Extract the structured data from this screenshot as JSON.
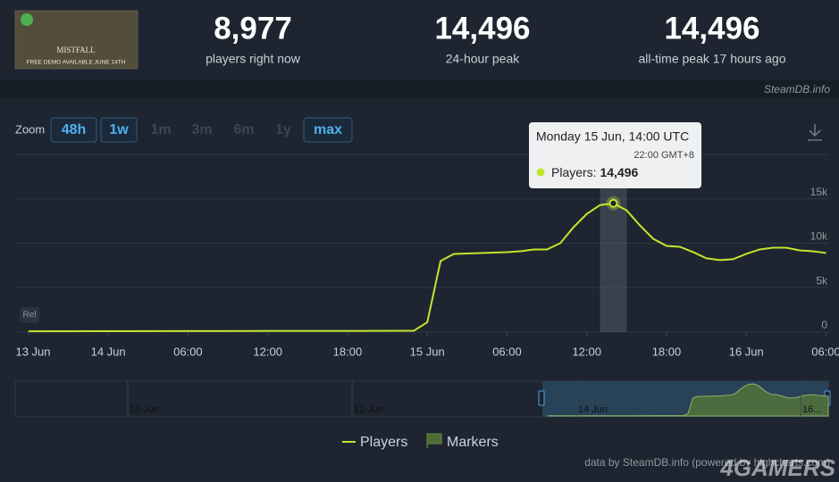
{
  "header": {
    "game_image_text": [
      "MISTFALL",
      "FREE DEMO AVAILABLE JUNE 14TH"
    ],
    "stats": [
      {
        "value": "8,977",
        "label": "players right now"
      },
      {
        "value": "14,496",
        "label": "24-hour peak"
      },
      {
        "value": "14,496",
        "label": "all-time peak 17 hours ago"
      }
    ],
    "source": "SteamDB.info"
  },
  "zoom": {
    "label": "Zoom",
    "buttons": [
      {
        "text": "48h",
        "enabled": true
      },
      {
        "text": "1w",
        "enabled": true
      },
      {
        "text": "1m",
        "enabled": false
      },
      {
        "text": "3m",
        "enabled": false
      },
      {
        "text": "6m",
        "enabled": false
      },
      {
        "text": "1y",
        "enabled": false
      },
      {
        "text": "max",
        "enabled": true
      }
    ]
  },
  "chart_data": {
    "type": "line",
    "x": [
      "13 Jun 18:00",
      "14 Jun 00:00",
      "14 Jun 06:00",
      "14 Jun 12:00",
      "14 Jun 18:00",
      "14 Jun 23:00",
      "15 Jun 00:00",
      "15 Jun 01:00",
      "15 Jun 02:00",
      "15 Jun 03:00",
      "15 Jun 04:00",
      "15 Jun 05:00",
      "15 Jun 06:00",
      "15 Jun 07:00",
      "15 Jun 08:00",
      "15 Jun 09:00",
      "15 Jun 10:00",
      "15 Jun 11:00",
      "15 Jun 12:00",
      "15 Jun 13:00",
      "15 Jun 14:00",
      "15 Jun 15:00",
      "15 Jun 16:00",
      "15 Jun 17:00",
      "15 Jun 18:00",
      "15 Jun 19:00",
      "15 Jun 20:00",
      "15 Jun 21:00",
      "15 Jun 22:00",
      "15 Jun 23:00",
      "16 Jun 00:00",
      "16 Jun 01:00",
      "16 Jun 02:00",
      "16 Jun 03:00",
      "16 Jun 04:00",
      "16 Jun 05:00",
      "16 Jun 06:00"
    ],
    "series": [
      {
        "name": "Players",
        "color": "#c3e62c",
        "values": [
          90,
          100,
          110,
          120,
          130,
          150,
          1100,
          8000,
          8800,
          8850,
          8900,
          8950,
          9000,
          9100,
          9300,
          9300,
          10000,
          11800,
          13300,
          14300,
          14496,
          13700,
          12000,
          10500,
          9700,
          9600,
          9000,
          8300,
          8100,
          8200,
          8800,
          9300,
          9500,
          9500,
          9200,
          9100,
          8900
        ]
      }
    ],
    "xlim": [
      "13 Jun 17:00",
      "16 Jun 06:10"
    ],
    "xticks": [
      {
        "value": "13 Jun 18:00",
        "label": "13 Jun"
      },
      {
        "value": "14 Jun 00:00",
        "label": "14 Jun"
      },
      {
        "value": "14 Jun 06:00",
        "label": "06:00"
      },
      {
        "value": "14 Jun 12:00",
        "label": "12:00"
      },
      {
        "value": "14 Jun 18:00",
        "label": "18:00"
      },
      {
        "value": "15 Jun 00:00",
        "label": "15 Jun"
      },
      {
        "value": "15 Jun 06:00",
        "label": "06:00"
      },
      {
        "value": "15 Jun 12:00",
        "label": "12:00"
      },
      {
        "value": "15 Jun 18:00",
        "label": "18:00"
      },
      {
        "value": "16 Jun 00:00",
        "label": "16 Jun"
      },
      {
        "value": "16 Jun 06:00",
        "label": "06:00"
      }
    ],
    "ylim": [
      0,
      20000
    ],
    "yticks": [
      0,
      {
        "value": 5000,
        "label": "5k"
      },
      {
        "value": 10000,
        "label": "10k"
      },
      {
        "value": 15000,
        "label": "15k"
      }
    ],
    "grid": true,
    "markers_legend": "Markers",
    "rel_button": "Rel",
    "tooltip": {
      "title": "Monday 15 Jun, 14:00 UTC",
      "local_time": "22:00 GMT+8",
      "label": "Players: ",
      "value": "14,496"
    },
    "navigator": {
      "labels": [
        "10 Jun",
        "12 Jun",
        "14 Jun",
        "16..."
      ]
    },
    "credits": "data by SteamDB.info (powered by highcharts.com)"
  },
  "watermark": "4GAMERS"
}
